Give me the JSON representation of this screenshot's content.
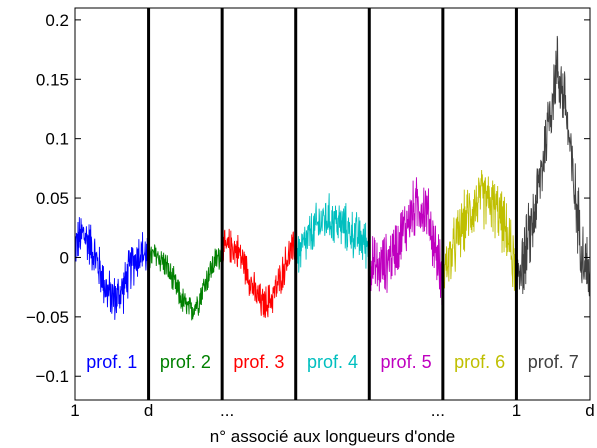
{
  "chart_data": {
    "type": "line",
    "title": "",
    "xlabel": "n° associé aux longueurs d'onde",
    "ylabel": "",
    "ylim": [
      -0.12,
      0.21
    ],
    "yticks": [
      0.2,
      0.15,
      0.1,
      0.05,
      0,
      -0.05,
      -0.1
    ],
    "ytick_labels": [
      "0.2",
      "0.15",
      "0.1",
      "0.05",
      "0",
      "−0.05",
      "−0.1"
    ],
    "xtick_labels": [
      {
        "label": "1",
        "at_segment_boundary": 0
      },
      {
        "label": "d",
        "at_segment_boundary": 1
      },
      {
        "label": "...",
        "at_segment_boundary": 2
      },
      {
        "label": "...",
        "at_segment_boundary": 5
      },
      {
        "label": "1",
        "at_segment_boundary": 6
      },
      {
        "label": "d",
        "at_segment_boundary": 7
      }
    ],
    "segments": 7,
    "grid": false,
    "series": [
      {
        "name": "prof. 1",
        "color": "#0000ff",
        "shape": [
          0.01,
          0.02,
          0.01,
          -0.01,
          -0.03,
          -0.035,
          -0.025,
          -0.005,
          0.005,
          0.0
        ],
        "noise": 0.02
      },
      {
        "name": "prof. 2",
        "color": "#008000",
        "shape": [
          0.0,
          0.002,
          -0.005,
          -0.02,
          -0.035,
          -0.045,
          -0.038,
          -0.02,
          -0.005,
          0.005
        ],
        "noise": 0.012
      },
      {
        "name": "prof. 3",
        "color": "#ff0000",
        "shape": [
          0.005,
          0.01,
          0.005,
          -0.01,
          -0.03,
          -0.04,
          -0.035,
          -0.02,
          0.0,
          0.01
        ],
        "noise": 0.015
      },
      {
        "name": "prof. 4",
        "color": "#00bfbf",
        "shape": [
          0.0,
          0.01,
          0.02,
          0.03,
          0.033,
          0.03,
          0.025,
          0.02,
          0.015,
          0.01
        ],
        "noise": 0.02
      },
      {
        "name": "prof. 5",
        "color": "#bf00bf",
        "shape": [
          -0.005,
          -0.01,
          -0.005,
          0.005,
          0.02,
          0.035,
          0.045,
          0.04,
          0.01,
          -0.02
        ],
        "noise": 0.025
      },
      {
        "name": "prof. 6",
        "color": "#bfbf00",
        "shape": [
          -0.01,
          0.0,
          0.02,
          0.035,
          0.045,
          0.05,
          0.045,
          0.035,
          0.015,
          -0.015
        ],
        "noise": 0.025
      },
      {
        "name": "prof. 7",
        "color": "#404040",
        "shape": [
          -0.01,
          0.0,
          0.03,
          0.07,
          0.12,
          0.16,
          0.13,
          0.06,
          0.01,
          -0.02
        ],
        "noise": 0.03
      }
    ]
  }
}
